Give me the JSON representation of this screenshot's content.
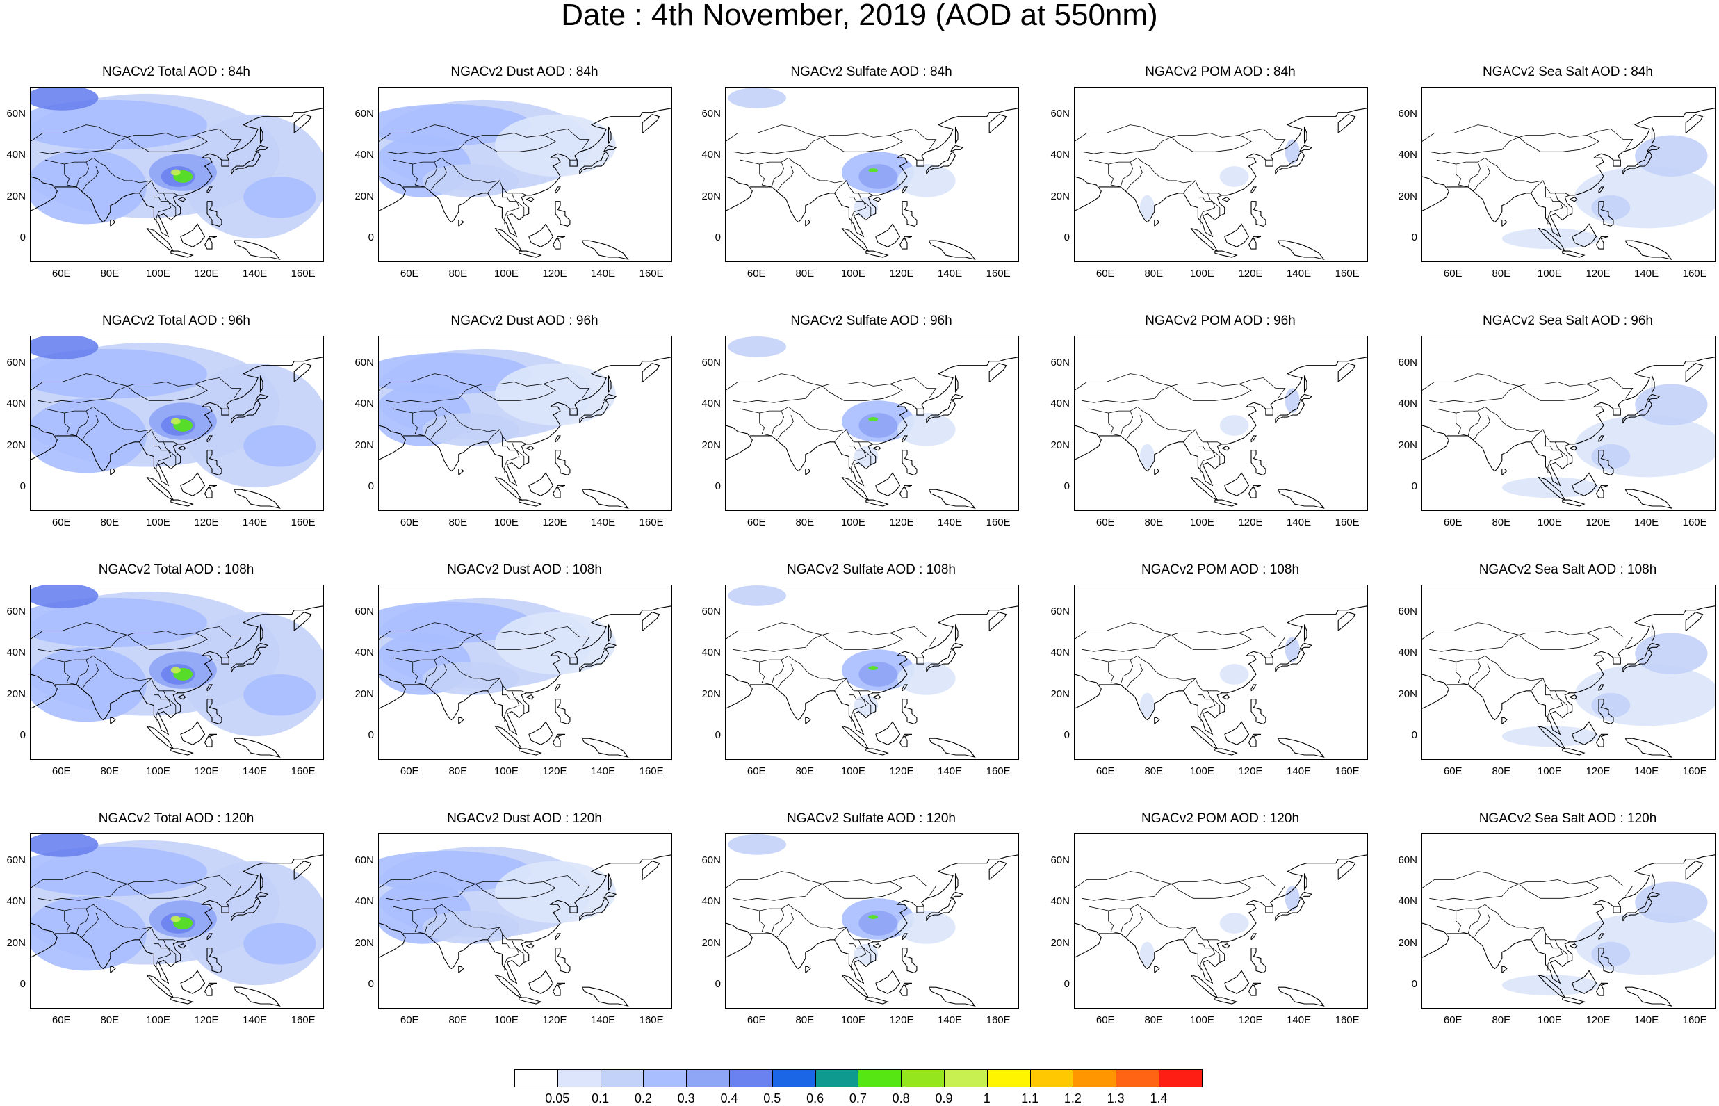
{
  "title": "Date : 4th November, 2019 (AOD at 550nm)",
  "lat_ticks": [
    "60N",
    "40N",
    "20N",
    "0"
  ],
  "lon_ticks": [
    "60E",
    "80E",
    "100E",
    "120E",
    "140E",
    "160E"
  ],
  "rows": [
    {
      "panels": [
        {
          "title": "NGACv2 Total AOD : 84h",
          "species": "total"
        },
        {
          "title": "NGACv2 Dust AOD : 84h",
          "species": "dust"
        },
        {
          "title": "NGACv2 Sulfate AOD : 84h",
          "species": "sulfate"
        },
        {
          "title": "NGACv2 POM AOD : 84h",
          "species": "pom"
        },
        {
          "title": "NGACv2 Sea Salt AOD : 84h",
          "species": "seasalt"
        }
      ]
    },
    {
      "panels": [
        {
          "title": "NGACv2 Total AOD : 96h",
          "species": "total"
        },
        {
          "title": "NGACv2 Dust AOD : 96h",
          "species": "dust"
        },
        {
          "title": "NGACv2 Sulfate AOD : 96h",
          "species": "sulfate"
        },
        {
          "title": "NGACv2 POM AOD : 96h",
          "species": "pom"
        },
        {
          "title": "NGACv2 Sea Salt AOD : 96h",
          "species": "seasalt"
        }
      ]
    },
    {
      "panels": [
        {
          "title": "NGACv2 Total AOD : 108h",
          "species": "total"
        },
        {
          "title": "NGACv2 Dust AOD : 108h",
          "species": "dust"
        },
        {
          "title": "NGACv2 Sulfate AOD : 108h",
          "species": "sulfate"
        },
        {
          "title": "NGACv2 POM AOD : 108h",
          "species": "pom"
        },
        {
          "title": "NGACv2 Sea Salt AOD : 108h",
          "species": "seasalt"
        }
      ]
    },
    {
      "panels": [
        {
          "title": "NGACv2 Total AOD : 120h",
          "species": "total"
        },
        {
          "title": "NGACv2 Dust AOD : 120h",
          "species": "dust"
        },
        {
          "title": "NGACv2 Sulfate AOD : 120h",
          "species": "sulfate"
        },
        {
          "title": "NGACv2 POM AOD : 120h",
          "species": "pom"
        },
        {
          "title": "NGACv2 Sea Salt  AOD : 120h",
          "species": "seasalt"
        }
      ]
    }
  ],
  "colorbar": {
    "colors": [
      "#ffffff",
      "#dce5fb",
      "#c3d2f8",
      "#a9beff",
      "#8fa5f6",
      "#6a82f0",
      "#1a66e6",
      "#0f9a8f",
      "#55e614",
      "#96e61e",
      "#c8f050",
      "#fff500",
      "#ffc800",
      "#ff9600",
      "#ff6414",
      "#ff1e14"
    ],
    "labels": [
      "0.05",
      "0.1",
      "0.2",
      "0.3",
      "0.4",
      "0.5",
      "0.6",
      "0.7",
      "0.8",
      "0.9",
      "1",
      "1.1",
      "1.2",
      "1.3",
      "1.4"
    ]
  }
}
